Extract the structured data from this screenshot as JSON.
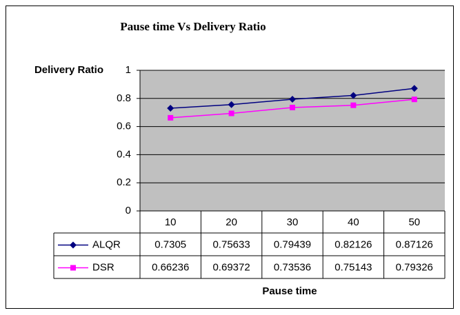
{
  "chart_data": {
    "type": "line",
    "title": "Pause time Vs Delivery Ratio",
    "y_label": "Delivery Ratio",
    "x_label": "Pause time",
    "categories": [
      "10",
      "20",
      "30",
      "40",
      "50"
    ],
    "series": [
      {
        "name": "ALQR",
        "color": "#000080",
        "marker": "diamond",
        "values": [
          0.7305,
          0.75633,
          0.79439,
          0.82126,
          0.87126
        ]
      },
      {
        "name": "DSR",
        "color": "#ff00ff",
        "marker": "square",
        "values": [
          0.66236,
          0.69372,
          0.73536,
          0.75143,
          0.79326
        ]
      }
    ],
    "ylim": [
      0,
      1
    ],
    "yticks": [
      0,
      0.2,
      0.4,
      0.6,
      0.8,
      1
    ],
    "grid": true,
    "data_table": true
  }
}
